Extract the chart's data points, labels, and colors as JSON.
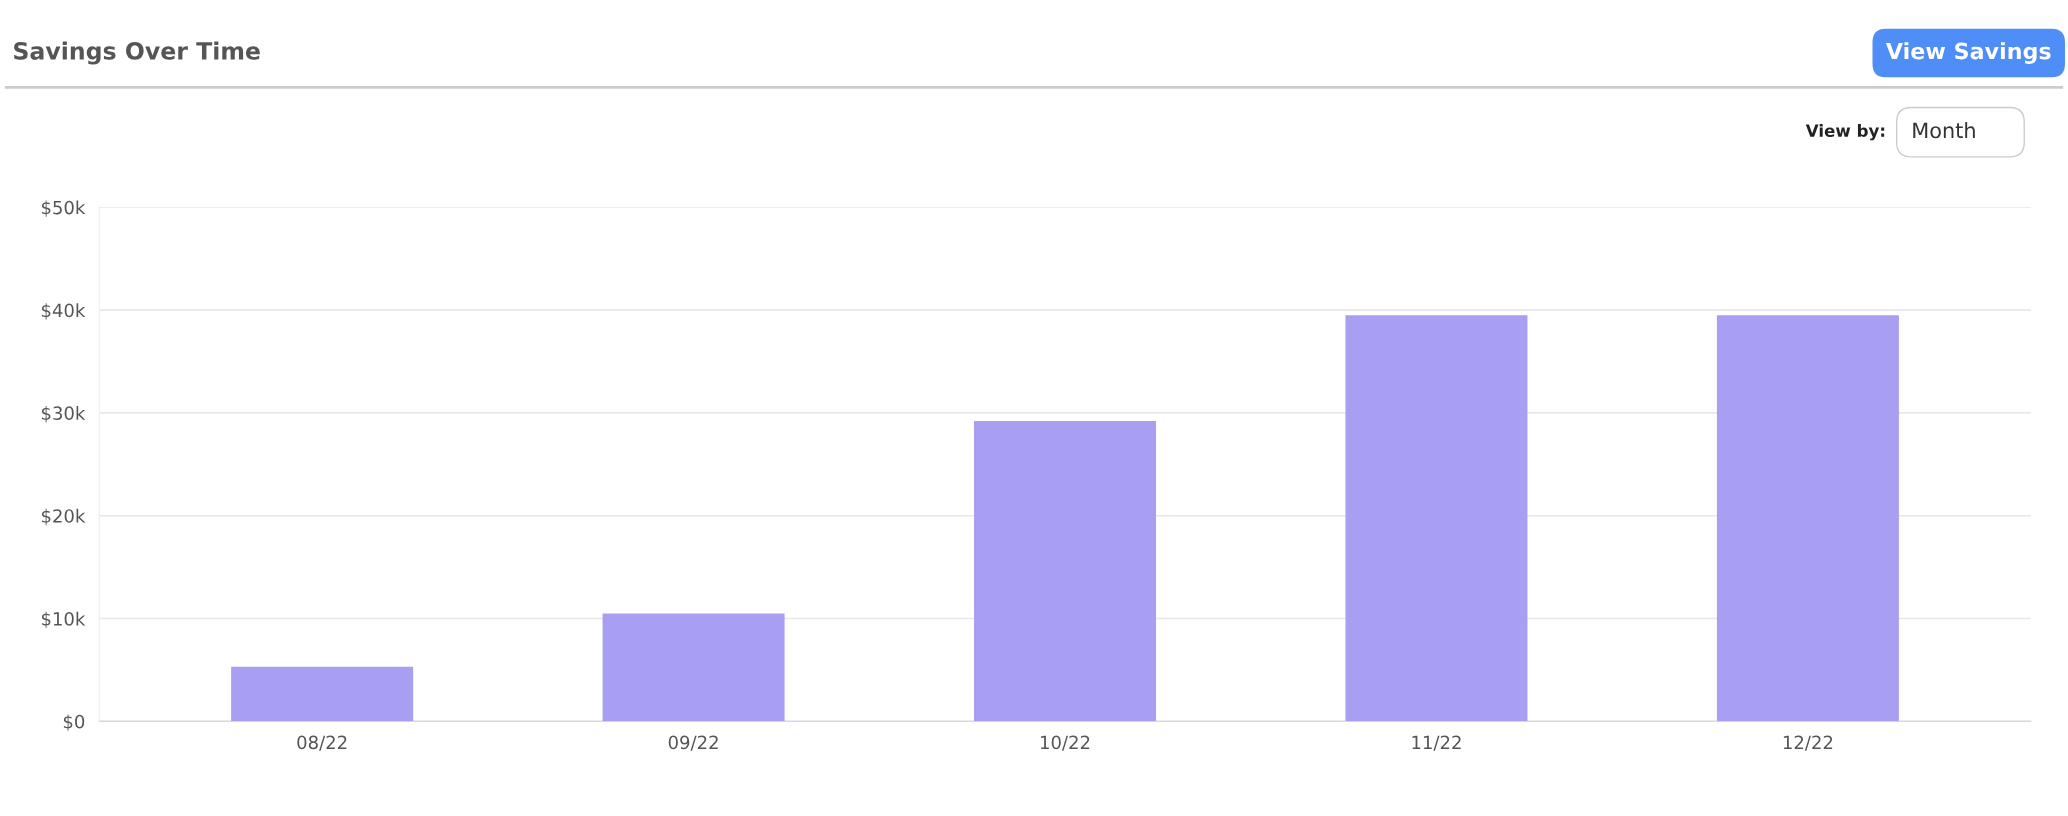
{
  "chart_data": {
    "type": "bar",
    "title": "Savings Over Time",
    "categories": [
      "08/22",
      "09/22",
      "10/22",
      "11/22",
      "12/22"
    ],
    "series": [
      {
        "color": "#a89ff2",
        "values": [
          5300,
          10500,
          29200,
          39500,
          39500
        ]
      }
    ],
    "ylim": [
      0,
      50000
    ],
    "yticks": [
      {
        "value": 0,
        "label": "$0"
      },
      {
        "value": 10000,
        "label": "$10k"
      },
      {
        "value": 20000,
        "label": "$20k"
      },
      {
        "value": 30000,
        "label": "$30k"
      },
      {
        "value": 40000,
        "label": "$40k"
      },
      {
        "value": 50000,
        "label": "$50k"
      }
    ],
    "grid": "y",
    "annotations": [
      "View Savings",
      "View by:",
      "Month"
    ]
  }
}
